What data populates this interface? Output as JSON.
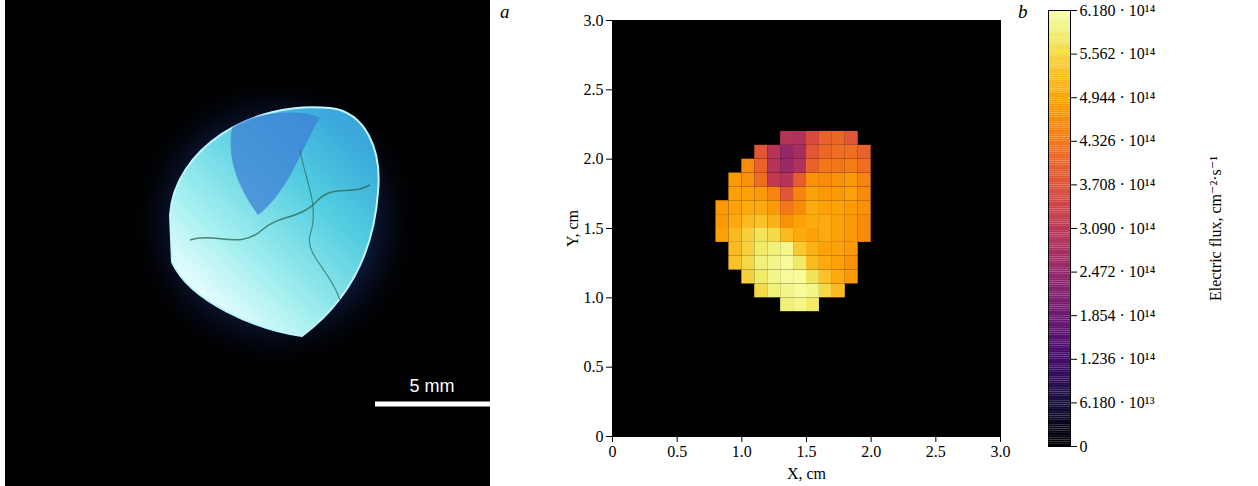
{
  "chart_data": [
    {
      "type": "photo",
      "panel": "a",
      "annotations": [
        "5 mm"
      ]
    },
    {
      "type": "heatmap",
      "panel": "b",
      "xlabel": "X, cm",
      "ylabel": "Y, cm",
      "xlim": [
        0,
        3
      ],
      "ylim": [
        0,
        3
      ],
      "xticks": [
        0,
        0.5,
        {
          "value": 1,
          "label": "1.0"
        },
        1.5,
        {
          "value": 2,
          "label": "2.0"
        },
        2.5,
        {
          "value": 3,
          "label": "3.0"
        }
      ],
      "yticks": [
        0,
        0.5,
        {
          "value": 1,
          "label": "1.0"
        },
        1.5,
        {
          "value": 2,
          "label": "2.0"
        },
        2.5,
        {
          "value": 3,
          "label": "3.0"
        }
      ],
      "color": "inferno",
      "cell_size": 0.1,
      "cells": [
        {
          "y": 0.9,
          "x": [
            1.3,
            1.4,
            1.5
          ],
          "values": [
            590000000000000.0,
            600000000000000.0,
            580000000000000.0
          ]
        },
        {
          "y": 1.0,
          "x": [
            1.1,
            1.2,
            1.3,
            1.4,
            1.5,
            1.6,
            1.7
          ],
          "values": [
            560000000000000.0,
            590000000000000.0,
            600000000000000.0,
            610000000000000.0,
            600000000000000.0,
            560000000000000.0,
            520000000000000.0
          ]
        },
        {
          "y": 1.1,
          "x": [
            1.0,
            1.1,
            1.2,
            1.3,
            1.4,
            1.5,
            1.6,
            1.7,
            1.8
          ],
          "values": [
            550000000000000.0,
            580000000000000.0,
            600000000000000.0,
            610000000000000.0,
            610000000000000.0,
            570000000000000.0,
            530000000000000.0,
            500000000000000.0,
            480000000000000.0
          ]
        },
        {
          "y": 1.2,
          "x": [
            0.9,
            1.0,
            1.1,
            1.2,
            1.3,
            1.4,
            1.5,
            1.6,
            1.7,
            1.8
          ],
          "values": [
            530000000000000.0,
            560000000000000.0,
            590000000000000.0,
            600000000000000.0,
            610000000000000.0,
            580000000000000.0,
            520000000000000.0,
            500000000000000.0,
            490000000000000.0,
            470000000000000.0
          ]
        },
        {
          "y": 1.3,
          "x": [
            0.9,
            1.0,
            1.1,
            1.2,
            1.3,
            1.4,
            1.5,
            1.6,
            1.7,
            1.8
          ],
          "values": [
            520000000000000.0,
            550000000000000.0,
            580000000000000.0,
            590000000000000.0,
            600000000000000.0,
            540000000000000.0,
            510000000000000.0,
            490000000000000.0,
            490000000000000.0,
            480000000000000.0
          ]
        },
        {
          "y": 1.4,
          "x": [
            0.8,
            0.9,
            1.0,
            1.1,
            1.2,
            1.3,
            1.4,
            1.5,
            1.6,
            1.7,
            1.8,
            1.9
          ],
          "values": [
            490000000000000.0,
            520000000000000.0,
            550000000000000.0,
            570000000000000.0,
            560000000000000.0,
            520000000000000.0,
            500000000000000.0,
            490000000000000.0,
            500000000000000.0,
            490000000000000.0,
            480000000000000.0,
            460000000000000.0
          ]
        },
        {
          "y": 1.5,
          "x": [
            0.8,
            0.9,
            1.0,
            1.1,
            1.2,
            1.3,
            1.4,
            1.5,
            1.6,
            1.7,
            1.8,
            1.9
          ],
          "values": [
            480000000000000.0,
            500000000000000.0,
            520000000000000.0,
            530000000000000.0,
            510000000000000.0,
            470000000000000.0,
            490000000000000.0,
            500000000000000.0,
            500000000000000.0,
            490000000000000.0,
            480000000000000.0,
            460000000000000.0
          ]
        },
        {
          "y": 1.6,
          "x": [
            0.8,
            0.9,
            1.0,
            1.1,
            1.2,
            1.3,
            1.4,
            1.5,
            1.6,
            1.7,
            1.8,
            1.9
          ],
          "values": [
            480000000000000.0,
            490000000000000.0,
            500000000000000.0,
            500000000000000.0,
            480000000000000.0,
            430000000000000.0,
            460000000000000.0,
            500000000000000.0,
            490000000000000.0,
            490000000000000.0,
            480000000000000.0,
            470000000000000.0
          ]
        },
        {
          "y": 1.7,
          "x": [
            0.9,
            1.0,
            1.1,
            1.2,
            1.3,
            1.4,
            1.5,
            1.6,
            1.7,
            1.8,
            1.9
          ],
          "values": [
            490000000000000.0,
            490000000000000.0,
            480000000000000.0,
            450000000000000.0,
            380000000000000.0,
            450000000000000.0,
            490000000000000.0,
            480000000000000.0,
            480000000000000.0,
            490000000000000.0,
            460000000000000.0
          ]
        },
        {
          "y": 1.8,
          "x": [
            0.9,
            1.0,
            1.1,
            1.2,
            1.3,
            1.4,
            1.5,
            1.6,
            1.7,
            1.8,
            1.9
          ],
          "values": [
            480000000000000.0,
            470000000000000.0,
            420000000000000.0,
            320000000000000.0,
            300000000000000.0,
            390000000000000.0,
            470000000000000.0,
            460000000000000.0,
            470000000000000.0,
            480000000000000.0,
            450000000000000.0
          ]
        },
        {
          "y": 1.9,
          "x": [
            1.0,
            1.1,
            1.2,
            1.3,
            1.4,
            1.5,
            1.6,
            1.7,
            1.8,
            1.9
          ],
          "values": [
            460000000000000.0,
            400000000000000.0,
            300000000000000.0,
            260000000000000.0,
            290000000000000.0,
            400000000000000.0,
            430000000000000.0,
            430000000000000.0,
            440000000000000.0,
            420000000000000.0
          ]
        },
        {
          "y": 2.0,
          "x": [
            1.1,
            1.2,
            1.3,
            1.4,
            1.5,
            1.6,
            1.7,
            1.8,
            1.9
          ],
          "values": [
            380000000000000.0,
            300000000000000.0,
            250000000000000.0,
            280000000000000.0,
            380000000000000.0,
            410000000000000.0,
            420000000000000.0,
            420000000000000.0,
            400000000000000.0
          ]
        },
        {
          "y": 2.1,
          "x": [
            1.3,
            1.4,
            1.5,
            1.6,
            1.7,
            1.8
          ],
          "values": [
            300000000000000.0,
            290000000000000.0,
            360000000000000.0,
            400000000000000.0,
            410000000000000.0,
            380000000000000.0
          ]
        }
      ],
      "colorbar": {
        "label": "Electric flux, cm⁻²·s⁻¹",
        "range": [
          0,
          618000000000000.0
        ],
        "ticks": [
          0,
          {
            "value": 61800000000000.0,
            "label": "6.180 · 10¹³"
          },
          {
            "value": 123600000000000.0,
            "label": "1.236 · 10¹⁴"
          },
          {
            "value": 185400000000000.0,
            "label": "1.854 · 10¹⁴"
          },
          {
            "value": 247200000000000.0,
            "label": "2.472 · 10¹⁴"
          },
          {
            "value": 309000000000000.0,
            "label": "3.090 · 10¹⁴"
          },
          {
            "value": 370800000000000.0,
            "label": "3.708 · 10¹⁴"
          },
          {
            "value": 432600000000000.0,
            "label": "4.326 · 10¹⁴"
          },
          {
            "value": 494400000000000.0,
            "label": "4.944 · 10¹⁴"
          },
          {
            "value": 556200000000000.0,
            "label": "5.562 · 10¹⁴"
          },
          {
            "value": 618000000000000.0,
            "label": "6.180 · 10¹⁴"
          }
        ]
      }
    }
  ]
}
